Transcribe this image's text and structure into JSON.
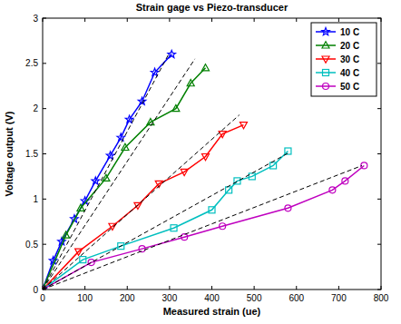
{
  "chart_data": {
    "type": "line",
    "title": "Strain gage vs Piezo-transducer",
    "x_label": "Measured strain (ue)",
    "y_label": "Voltage output (V)",
    "xlim": [
      0,
      800
    ],
    "xticks": [
      0,
      100,
      200,
      300,
      400,
      500,
      600,
      700,
      800
    ],
    "ylim": [
      0,
      3
    ],
    "yticks": [
      0,
      0.5,
      1,
      1.5,
      2,
      2.5,
      3
    ],
    "grid": false,
    "legend": "northeast",
    "series": [
      {
        "name": "10 C",
        "color": "#0000ff",
        "marker": "pentagram",
        "line_style": "solid",
        "x": [
          0,
          25,
          45,
          75,
          100,
          125,
          160,
          185,
          205,
          235,
          265,
          305
        ],
        "values": [
          0,
          0.32,
          0.53,
          0.78,
          0.98,
          1.2,
          1.48,
          1.68,
          1.88,
          2.08,
          2.4,
          2.6
        ]
      },
      {
        "name": "20 C",
        "color": "#008000",
        "marker": "triangle-up",
        "line_style": "solid",
        "x": [
          0,
          55,
          90,
          150,
          195,
          255,
          315,
          350,
          385
        ],
        "values": [
          0,
          0.6,
          0.9,
          1.23,
          1.57,
          1.85,
          2.0,
          2.28,
          2.45
        ]
      },
      {
        "name": "30 C",
        "color": "#ff0000",
        "marker": "triangle-down",
        "line_style": "solid",
        "x": [
          0,
          85,
          165,
          225,
          275,
          335,
          385,
          425,
          475
        ],
        "values": [
          0,
          0.42,
          0.7,
          0.93,
          1.17,
          1.3,
          1.47,
          1.72,
          1.82
        ]
      },
      {
        "name": "40 C",
        "color": "#00bfbf",
        "marker": "square",
        "line_style": "solid",
        "x": [
          0,
          95,
          185,
          310,
          400,
          440,
          460,
          495,
          545,
          580
        ],
        "values": [
          0,
          0.33,
          0.48,
          0.68,
          0.88,
          1.1,
          1.2,
          1.25,
          1.37,
          1.53
        ]
      },
      {
        "name": "50 C",
        "color": "#bf00bf",
        "marker": "circle",
        "line_style": "solid",
        "x": [
          0,
          115,
          235,
          335,
          425,
          580,
          685,
          715,
          760
        ],
        "values": [
          0,
          0.3,
          0.45,
          0.58,
          0.7,
          0.9,
          1.1,
          1.2,
          1.37
        ]
      },
      {
        "color": "#000000",
        "marker": "none",
        "line_style": "dashed",
        "x": [
          0,
          300
        ],
        "values": [
          0,
          2.62
        ]
      },
      {
        "color": "#000000",
        "marker": "none",
        "line_style": "dashed",
        "x": [
          0,
          360
        ],
        "values": [
          0,
          2.55
        ]
      },
      {
        "color": "#000000",
        "marker": "none",
        "line_style": "dashed",
        "x": [
          0,
          465
        ],
        "values": [
          0,
          1.93
        ]
      },
      {
        "color": "#000000",
        "marker": "none",
        "line_style": "dashed",
        "x": [
          0,
          585
        ],
        "values": [
          0,
          1.52
        ]
      },
      {
        "color": "#000000",
        "marker": "none",
        "line_style": "dashed",
        "x": [
          0,
          755
        ],
        "values": [
          0,
          1.37
        ]
      }
    ]
  }
}
